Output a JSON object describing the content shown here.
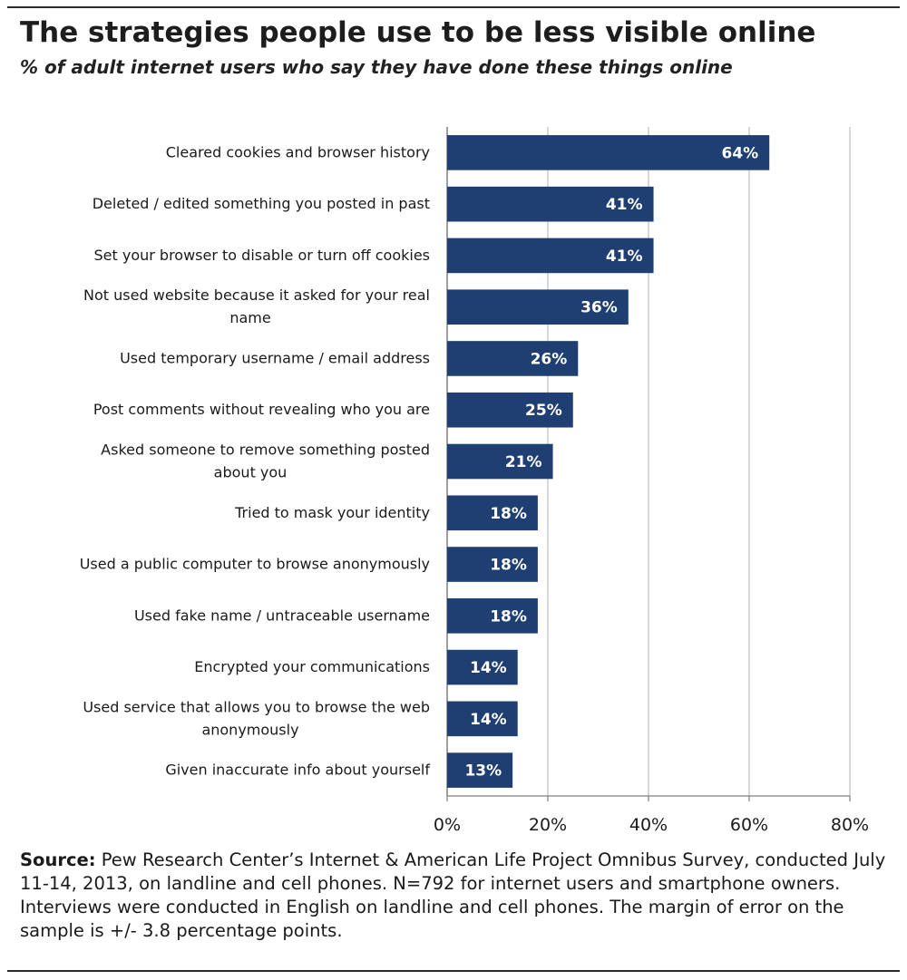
{
  "title": "The strategies people use to be less visible online",
  "subtitle": "% of adult internet users who say they have done these things online",
  "source_label": "Source:",
  "source_text": "Pew Research Center’s Internet & American Life Project Omnibus Survey, conducted July 11-14, 2013, on landline and cell phones. N=792 for internet users and smartphone owners. Interviews were conducted in English on landline and cell phones. The margin of error on the sample is +/- 3.8 percentage points.",
  "colors": {
    "bar": "#1f3f73",
    "grid": "#bfbfbf",
    "axis": "#7f7f7f"
  },
  "chart_data": {
    "type": "bar",
    "orientation": "horizontal",
    "title": "The strategies people use to be less visible online",
    "subtitle": "% of adult internet users who say they have done these things online",
    "categories": [
      [
        "Cleared cookies and browser history"
      ],
      [
        "Deleted / edited something you posted in past"
      ],
      [
        "Set your browser to disable or turn off cookies"
      ],
      [
        "Not used website because it asked for your real",
        "name"
      ],
      [
        "Used temporary username / email address"
      ],
      [
        "Post comments without revealing who you are"
      ],
      [
        "Asked someone to remove something posted",
        "about you"
      ],
      [
        "Tried to mask your identity"
      ],
      [
        "Used a public computer to browse anonymously"
      ],
      [
        "Used fake name / untraceable username"
      ],
      [
        "Encrypted your communications"
      ],
      [
        "Used service that allows you to browse the web",
        "anonymously"
      ],
      [
        "Given inaccurate info about yourself"
      ]
    ],
    "values": [
      64,
      41,
      41,
      36,
      26,
      25,
      21,
      18,
      18,
      18,
      14,
      14,
      13
    ],
    "value_labels": [
      "64%",
      "41%",
      "41%",
      "36%",
      "26%",
      "25%",
      "21%",
      "18%",
      "18%",
      "18%",
      "14%",
      "14%",
      "13%"
    ],
    "xlim": [
      0,
      80
    ],
    "xticks": [
      0,
      20,
      40,
      60,
      80
    ],
    "xtick_labels": [
      "0%",
      "20%",
      "40%",
      "60%",
      "80%"
    ],
    "grid": true,
    "legend": "none"
  }
}
